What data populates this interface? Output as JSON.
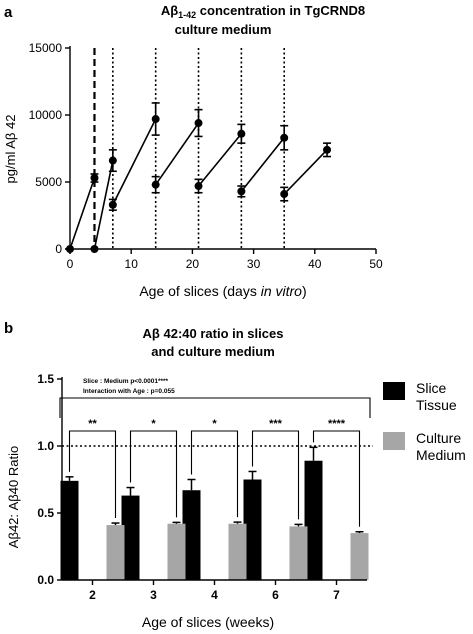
{
  "chart_data": [
    {
      "type": "line",
      "panel_label": "a",
      "title_lines": [
        "Aβ",
        "1-42",
        " concentration in TgCRND8",
        "culture medium"
      ],
      "xlabel_parts": [
        "Age of slices (days ",
        "in vitro",
        ")"
      ],
      "ylabel": "pg/ml Aβ 42",
      "xlim": [
        0,
        50
      ],
      "ylim": [
        0,
        15000
      ],
      "xticks": [
        "0",
        "10",
        "20",
        "30",
        "40",
        "50"
      ],
      "yticks": [
        "0",
        "5000",
        "10000",
        "15000"
      ],
      "dashed_vline_x": 4,
      "dotted_vline_x": [
        7,
        14,
        21,
        28,
        35
      ],
      "segments": [
        [
          {
            "x": 0,
            "y": 0,
            "err": 0
          },
          {
            "x": 4,
            "y": 5300,
            "err": 300
          }
        ],
        [
          {
            "x": 4,
            "y": 0,
            "err": 0
          },
          {
            "x": 7,
            "y": 6600,
            "err": 800
          }
        ],
        [
          {
            "x": 7,
            "y": 3300,
            "err": 400
          },
          {
            "x": 14,
            "y": 9700,
            "err": 1200
          }
        ],
        [
          {
            "x": 14,
            "y": 4800,
            "err": 600
          },
          {
            "x": 21,
            "y": 9400,
            "err": 1000
          }
        ],
        [
          {
            "x": 21,
            "y": 4700,
            "err": 500
          },
          {
            "x": 28,
            "y": 8600,
            "err": 700
          }
        ],
        [
          {
            "x": 28,
            "y": 4300,
            "err": 400
          },
          {
            "x": 35,
            "y": 8300,
            "err": 900
          }
        ],
        [
          {
            "x": 35,
            "y": 4100,
            "err": 500
          },
          {
            "x": 42,
            "y": 7400,
            "err": 500
          }
        ]
      ]
    },
    {
      "type": "bar",
      "panel_label": "b",
      "title_lines": [
        "Aβ 42:40 ratio in slices",
        "and culture medium"
      ],
      "xlabel": "Age of slices (weeks)",
      "ylabel": "Aβ42: Aβ40 Ratio",
      "ylim": [
        0,
        1.5
      ],
      "yticks": [
        "0.0",
        "0.5",
        "1.0",
        "1.5"
      ],
      "reference_line_y": 1.0,
      "categories": [
        "2",
        "3",
        "4",
        "6",
        "7"
      ],
      "series": [
        {
          "name_lines": [
            "Slice",
            "Tissue"
          ],
          "color": "#000000",
          "values": [
            0.74,
            0.63,
            0.67,
            0.75,
            0.89
          ],
          "errors": [
            0.03,
            0.06,
            0.08,
            0.06,
            0.1
          ]
        },
        {
          "name_lines": [
            "Culture",
            "Medium"
          ],
          "color": "#a6a6a6",
          "values": [
            0.41,
            0.42,
            0.42,
            0.4,
            0.35
          ],
          "errors": [
            0.015,
            0.01,
            0.012,
            0.015,
            0.01
          ]
        }
      ],
      "significance": [
        "**",
        "*",
        "*",
        "***",
        "****"
      ],
      "overall_stats": [
        "Slice : Medium p<0.0001****",
        "Interaction with Age : p=0.055"
      ]
    }
  ]
}
